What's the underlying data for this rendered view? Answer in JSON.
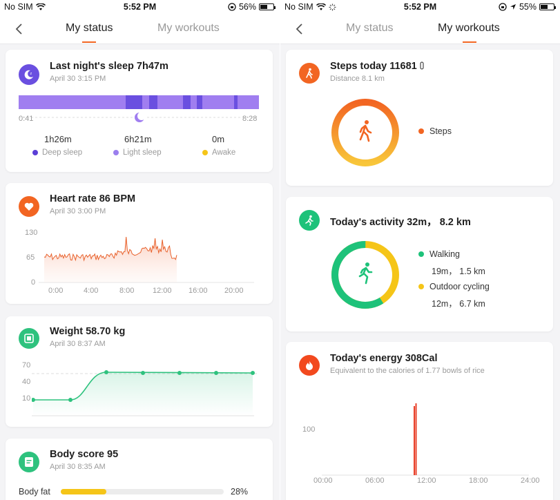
{
  "left": {
    "status": {
      "carrier": "No SIM",
      "time": "5:52 PM",
      "battery": "56%",
      "battery_level": 0.56
    },
    "tabs": [
      {
        "label": "My status"
      },
      {
        "label": "My workouts"
      }
    ],
    "sleep": {
      "title": "Last night's sleep 7h47m",
      "date": "April 30 3:15 PM",
      "start": "0:41",
      "end": "8:28",
      "stats": [
        {
          "value": "1h26m",
          "label": "Deep sleep",
          "color": "#5b3fd6"
        },
        {
          "value": "6h21m",
          "label": "Light sleep",
          "color": "#9b7fee"
        },
        {
          "value": "0m",
          "label": "Awake",
          "color": "#f5c518"
        }
      ]
    },
    "heart": {
      "title": "Heart rate 86  BPM",
      "date": "April 30 3:00 PM",
      "y_ticks": [
        "130",
        "65",
        "0"
      ],
      "x_ticks": [
        "0:00",
        "4:00",
        "8:00",
        "12:00",
        "16:00",
        "20:00"
      ]
    },
    "weight": {
      "title": "Weight 58.70 kg",
      "date": "April 30 8:37 AM",
      "y_ticks": [
        "70",
        "40",
        "10"
      ]
    },
    "body": {
      "title": "Body score 95",
      "date": "April 30 8:35 AM",
      "metric_label": "Body fat",
      "metric_value": "28%",
      "metric_fraction": 0.28
    }
  },
  "right": {
    "status": {
      "carrier": "No SIM",
      "time": "5:52 PM",
      "battery": "55%",
      "battery_level": 0.55
    },
    "tabs": [
      {
        "label": "My status"
      },
      {
        "label": "My workouts"
      }
    ],
    "steps": {
      "title": "Steps today 11681",
      "distance": "Distance 8.1 km",
      "legend": "Steps"
    },
    "activity": {
      "title": "Today's activity 32m， 8.2 km",
      "items": [
        {
          "label": "Walking",
          "detail": "19m， 1.5 km",
          "color": "#1ec27a",
          "share": 0.59
        },
        {
          "label": "Outdoor cycling",
          "detail": "12m， 6.7 km",
          "color": "#f5c518",
          "share": 0.41
        }
      ]
    },
    "energy": {
      "title": "Today's energy 308Cal",
      "subtitle": "Equivalent to the calories of 1.77 bowls of rice",
      "y_tick": "100",
      "x_ticks": [
        "00:00",
        "06:00",
        "12:00",
        "18:00",
        "24:00"
      ]
    }
  }
}
